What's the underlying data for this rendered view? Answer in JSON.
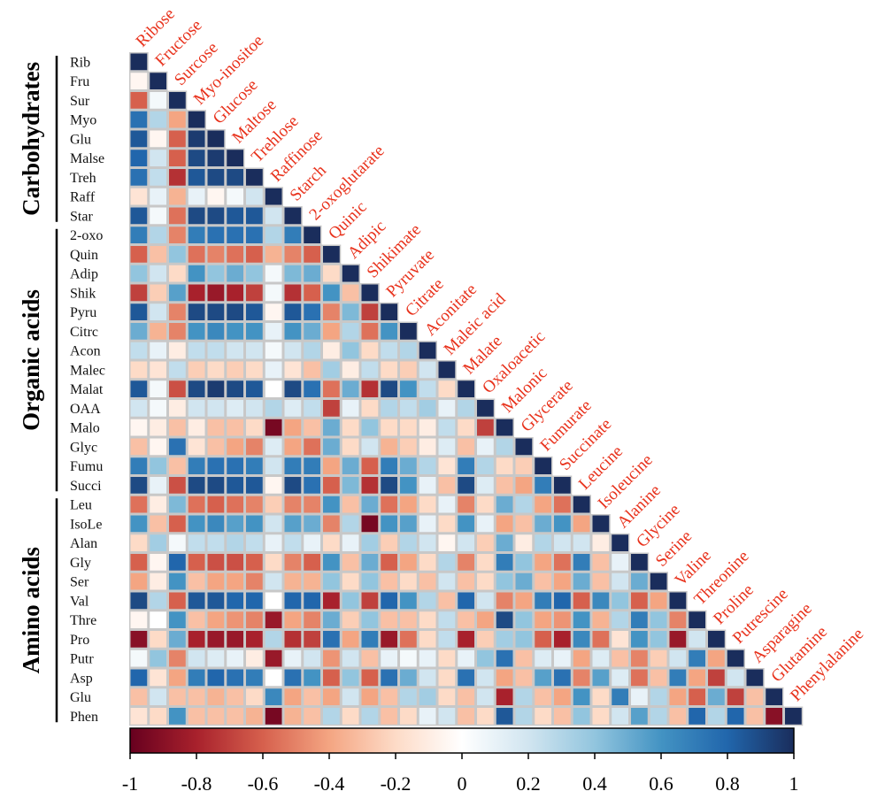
{
  "chart_data": {
    "type": "heatmap",
    "title": "",
    "row_labels": [
      "Rib",
      "Fru",
      "Sur",
      "Myo",
      "Glu",
      "Malse",
      "Treh",
      "Raff",
      "Star",
      "2-oxo",
      "Quin",
      "Adip",
      "Shik",
      "Pyru",
      "Citrc",
      "Acon",
      "Malec",
      "Malat",
      "OAA",
      "Malo",
      "Glyc",
      "Fumu",
      "Succi",
      "Leu",
      "IsoLe",
      "Alan",
      "Gly",
      "Ser",
      "Val",
      "Thre",
      "Pro",
      "Putr",
      "Asp",
      "Glu",
      "Phen"
    ],
    "column_labels": [
      "Ribose",
      "Fructose",
      "Surcose",
      "Myo-inositoe",
      "Glucose",
      "Maltose",
      "Trehlose",
      "Raffinose",
      "Starch",
      "2-oxoglutarate",
      "Quinic",
      "Adipic",
      "Shikimate",
      "Pyruvate",
      "Citrate",
      "Aconitate",
      "Maleic acid",
      "Malate",
      "Oxaloacetic",
      "Malonic",
      "Glycerate",
      "Fumurate",
      "Succinate",
      "Leucine",
      "Isoleucine",
      "Alanine",
      "Glycine",
      "Serine",
      "Valine",
      "Threonine",
      "Proline",
      "Putrescine",
      "Asparagine",
      "Glutamine",
      "Phenylalanine"
    ],
    "groups": [
      {
        "label": "Carbohydrates",
        "first_row": 0,
        "last_row": 8
      },
      {
        "label": "Organic acids",
        "first_row": 9,
        "last_row": 22
      },
      {
        "label": "Amino acids",
        "first_row": 23,
        "last_row": 34
      }
    ],
    "colorbar": {
      "min": -1,
      "max": 1,
      "ticks": [
        "-1",
        "-0.8",
        "-0.6",
        "-0.4",
        "-0.2",
        "0",
        "0.2",
        "0.4",
        "0.6",
        "0.8",
        "1"
      ],
      "stops": [
        {
          "value": -1,
          "color": "#67001f"
        },
        {
          "value": -0.8,
          "color": "#a8212c"
        },
        {
          "value": -0.6,
          "color": "#d6604d"
        },
        {
          "value": -0.4,
          "color": "#f4a582"
        },
        {
          "value": -0.2,
          "color": "#fddbc7"
        },
        {
          "value": 0,
          "color": "#ffffff"
        },
        {
          "value": 0.2,
          "color": "#d1e5f0"
        },
        {
          "value": 0.4,
          "color": "#92c5de"
        },
        {
          "value": 0.6,
          "color": "#4393c3"
        },
        {
          "value": 0.8,
          "color": "#2166ac"
        },
        {
          "value": 1,
          "color": "#1a2d5c"
        }
      ]
    },
    "matrix": [
      [
        1
      ],
      [
        -0.05,
        1
      ],
      [
        -0.6,
        0.05,
        1
      ],
      [
        0.75,
        0.3,
        -0.4,
        1
      ],
      [
        0.85,
        -0.05,
        -0.6,
        0.95,
        1
      ],
      [
        0.8,
        0.2,
        -0.6,
        0.9,
        0.95,
        1
      ],
      [
        0.75,
        0.25,
        -0.75,
        0.85,
        0.9,
        0.9,
        1
      ],
      [
        -0.15,
        0.1,
        -0.35,
        0.1,
        -0.05,
        0.05,
        0.2,
        1
      ],
      [
        0.85,
        0.05,
        -0.55,
        0.9,
        0.9,
        0.85,
        0.85,
        0.2,
        1
      ],
      [
        0.7,
        0.3,
        -0.5,
        0.7,
        0.75,
        0.75,
        0.75,
        0.3,
        0.7,
        1
      ],
      [
        -0.6,
        -0.3,
        0.4,
        -0.55,
        -0.5,
        -0.55,
        -0.6,
        -0.35,
        -0.5,
        -0.6,
        1
      ],
      [
        0.4,
        0.2,
        -0.2,
        0.6,
        0.4,
        0.5,
        0.4,
        0.05,
        0.45,
        0.5,
        -0.2,
        1
      ],
      [
        -0.7,
        -0.25,
        0.55,
        -0.8,
        -0.85,
        -0.8,
        -0.7,
        0.05,
        -0.75,
        -0.6,
        0.6,
        -0.3,
        1
      ],
      [
        0.85,
        0.2,
        -0.5,
        0.9,
        0.9,
        0.9,
        0.85,
        -0.05,
        0.85,
        0.75,
        -0.5,
        0.45,
        -0.7,
        1
      ],
      [
        0.5,
        -0.35,
        -0.5,
        0.6,
        0.65,
        0.6,
        0.6,
        0.1,
        0.6,
        0.5,
        -0.4,
        0.3,
        -0.55,
        0.6,
        1
      ],
      [
        0.25,
        0.1,
        -0.1,
        0.25,
        0.25,
        0.2,
        0.2,
        0.05,
        0.2,
        0.3,
        -0.1,
        0.4,
        -0.2,
        0.25,
        0.3,
        1
      ],
      [
        -0.2,
        -0.15,
        0.25,
        -0.25,
        -0.2,
        -0.25,
        -0.2,
        0.1,
        -0.15,
        -0.3,
        0.35,
        -0.1,
        0.25,
        -0.2,
        -0.25,
        0.2,
        1
      ],
      [
        0.85,
        0.05,
        -0.65,
        0.9,
        0.95,
        0.9,
        0.85,
        0.0,
        0.9,
        0.75,
        -0.55,
        0.5,
        -0.75,
        0.9,
        0.6,
        0.25,
        -0.2,
        1
      ],
      [
        0.2,
        0.05,
        -0.1,
        0.2,
        0.2,
        0.15,
        0.2,
        0.3,
        0.15,
        0.25,
        -0.7,
        0.1,
        -0.2,
        0.3,
        0.25,
        0.35,
        0.1,
        0.3,
        1
      ],
      [
        -0.05,
        -0.1,
        -0.3,
        -0.1,
        -0.3,
        -0.3,
        -0.2,
        -0.95,
        -0.4,
        -0.3,
        0.5,
        -0.2,
        0.4,
        -0.2,
        -0.2,
        -0.1,
        0.25,
        -0.2,
        -0.7,
        1
      ],
      [
        -0.3,
        -0.05,
        0.75,
        -0.15,
        -0.3,
        -0.4,
        -0.5,
        0.15,
        -0.4,
        -0.55,
        0.5,
        -0.2,
        0.2,
        -0.35,
        -0.25,
        -0.1,
        0.15,
        -0.3,
        0.1,
        0.3,
        1
      ],
      [
        0.7,
        0.4,
        -0.3,
        0.7,
        0.75,
        0.75,
        0.7,
        0.2,
        0.7,
        0.7,
        -0.4,
        0.5,
        -0.6,
        0.7,
        0.5,
        0.3,
        -0.15,
        0.7,
        0.3,
        -0.2,
        -0.25,
        1
      ],
      [
        0.9,
        0.1,
        -0.65,
        0.9,
        0.9,
        0.85,
        0.85,
        -0.05,
        0.9,
        0.75,
        -0.6,
        0.45,
        -0.75,
        0.9,
        0.6,
        0.1,
        -0.3,
        0.9,
        0.15,
        -0.3,
        -0.4,
        0.7,
        1
      ],
      [
        -0.55,
        -0.1,
        0.45,
        -0.55,
        -0.6,
        -0.55,
        -0.5,
        -0.25,
        -0.5,
        -0.5,
        0.6,
        -0.3,
        0.5,
        -0.55,
        -0.4,
        -0.2,
        0.1,
        -0.5,
        -0.2,
        0.5,
        0.3,
        -0.4,
        -0.55,
        1
      ],
      [
        0.6,
        -0.3,
        -0.6,
        0.6,
        0.65,
        0.55,
        0.6,
        0.2,
        0.55,
        0.5,
        -0.5,
        0.3,
        -0.95,
        0.6,
        0.55,
        0.1,
        -0.2,
        0.6,
        0.1,
        -0.4,
        -0.3,
        0.5,
        0.6,
        -0.4,
        1
      ],
      [
        -0.2,
        0.35,
        0.05,
        0.25,
        0.25,
        0.3,
        0.25,
        0.1,
        0.25,
        0.1,
        -0.2,
        0.1,
        0.35,
        -0.25,
        0.3,
        0.2,
        -0.05,
        0.2,
        -0.25,
        0.5,
        -0.1,
        0.3,
        0.2,
        0.2,
        -0.1,
        1
      ],
      [
        -0.6,
        -0.05,
        0.8,
        -0.6,
        -0.65,
        -0.65,
        -0.6,
        -0.2,
        -0.5,
        -0.6,
        0.6,
        -0.3,
        0.5,
        -0.6,
        -0.4,
        -0.2,
        0.3,
        -0.5,
        -0.2,
        0.7,
        0.4,
        -0.4,
        -0.55,
        0.7,
        -0.3,
        0.1,
        1
      ],
      [
        -0.4,
        -0.1,
        0.6,
        -0.3,
        -0.4,
        -0.4,
        -0.5,
        0.2,
        -0.35,
        -0.35,
        0.4,
        -0.2,
        0.4,
        -0.3,
        -0.2,
        -0.3,
        0.2,
        -0.3,
        -0.2,
        0.4,
        0.5,
        -0.3,
        -0.4,
        0.5,
        -0.3,
        0.2,
        0.5,
        1
      ],
      [
        0.9,
        0.3,
        -0.6,
        0.85,
        0.85,
        0.8,
        0.8,
        0.0,
        0.8,
        0.8,
        -0.8,
        0.4,
        -0.7,
        0.8,
        0.6,
        0.3,
        -0.3,
        0.8,
        0.2,
        -0.5,
        -0.4,
        0.7,
        0.8,
        -0.6,
        0.65,
        0.4,
        -0.6,
        -0.4,
        1
      ],
      [
        -0.05,
        0.0,
        0.6,
        -0.3,
        -0.4,
        -0.45,
        -0.5,
        -0.85,
        -0.4,
        -0.5,
        0.5,
        -0.25,
        0.4,
        -0.3,
        -0.3,
        -0.2,
        0.25,
        -0.3,
        -0.4,
        0.9,
        0.4,
        -0.4,
        -0.45,
        0.6,
        -0.35,
        0.3,
        0.7,
        0.4,
        -0.5,
        1
      ],
      [
        -0.9,
        -0.2,
        0.5,
        -0.8,
        -0.85,
        -0.85,
        -0.8,
        0.3,
        -0.75,
        -0.7,
        0.75,
        -0.4,
        0.7,
        -0.85,
        -0.55,
        -0.2,
        0.25,
        -0.8,
        -0.25,
        0.35,
        0.4,
        -0.6,
        -0.8,
        0.65,
        -0.55,
        -0.15,
        0.6,
        0.4,
        -0.85,
        0.2,
        1
      ],
      [
        0.05,
        0.4,
        -0.5,
        0.2,
        0.15,
        0.1,
        -0.1,
        -0.85,
        0.1,
        0.2,
        -0.45,
        0.2,
        -0.3,
        0.1,
        0.05,
        0.1,
        -0.2,
        0.1,
        0.4,
        0.75,
        -0.3,
        0.15,
        0.1,
        -0.4,
        0.15,
        -0.3,
        -0.5,
        -0.25,
        0.2,
        0.7,
        -0.4,
        1
      ],
      [
        0.8,
        -0.15,
        -0.4,
        0.7,
        0.8,
        0.75,
        0.7,
        0.0,
        0.75,
        0.6,
        -0.6,
        0.4,
        -0.6,
        0.75,
        0.5,
        0.2,
        -0.2,
        0.75,
        0.2,
        -0.4,
        -0.3,
        0.55,
        0.75,
        -0.5,
        0.55,
        0.15,
        -0.55,
        -0.3,
        0.7,
        -0.4,
        -0.7,
        0.2,
        1
      ],
      [
        -0.3,
        0.2,
        -0.3,
        -0.3,
        -0.35,
        -0.3,
        -0.2,
        0.65,
        -0.4,
        -0.3,
        -0.4,
        0.2,
        -0.4,
        -0.3,
        0.3,
        0.35,
        -0.2,
        -0.3,
        0.2,
        -0.8,
        0.3,
        -0.3,
        -0.4,
        0.6,
        -0.2,
        0.7,
        0.1,
        0.3,
        -0.4,
        -0.6,
        0.5,
        -0.7,
        -0.3,
        1
      ],
      [
        -0.15,
        -0.2,
        0.6,
        -0.3,
        -0.3,
        -0.3,
        -0.35,
        -0.95,
        -0.35,
        -0.3,
        0.3,
        -0.2,
        0.3,
        -0.3,
        -0.2,
        0.1,
        0.2,
        -0.3,
        -0.2,
        0.85,
        0.3,
        -0.2,
        -0.3,
        0.4,
        -0.2,
        0.2,
        0.55,
        0.3,
        -0.3,
        0.8,
        0.3,
        0.8,
        -0.3,
        -0.9,
        1
      ]
    ]
  }
}
